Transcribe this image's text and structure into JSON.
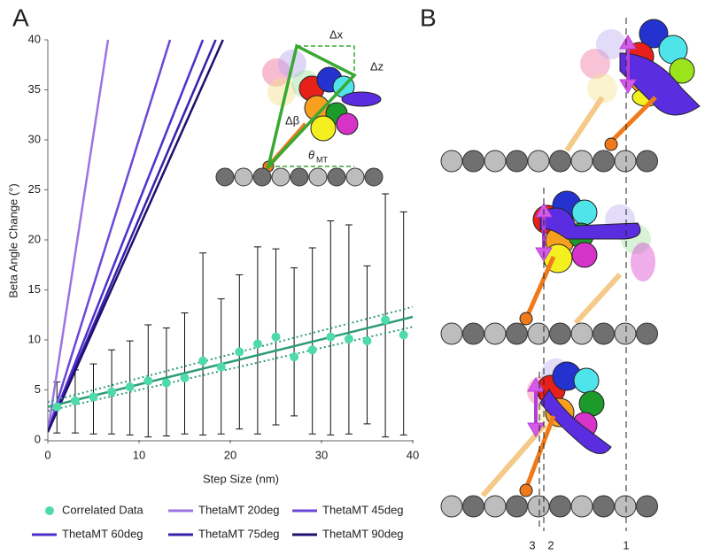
{
  "chart_data": {
    "type": "scatter",
    "panel_label": "A",
    "xlabel": "Step Size (nm)",
    "ylabel": "Beta Angle Change (°)",
    "xlim": [
      0,
      40
    ],
    "ylim": [
      0,
      40
    ],
    "xticks": [
      0,
      10,
      20,
      30,
      40
    ],
    "yticks": [
      0,
      5,
      10,
      15,
      20,
      25,
      30,
      35,
      40
    ],
    "series": [
      {
        "name": "Correlated Data",
        "color": "#4fdba8",
        "x": [
          1,
          3,
          5,
          7,
          9,
          11,
          13,
          15,
          17,
          19,
          21,
          23,
          25,
          27,
          29,
          31,
          33,
          35,
          37,
          39
        ],
        "values": [
          3.3,
          3.9,
          4.3,
          4.8,
          5.3,
          5.9,
          5.7,
          6.2,
          7.9,
          7.3,
          8.8,
          9.6,
          10.3,
          8.3,
          9.0,
          10.3,
          10.1,
          9.9,
          12.0,
          10.5
        ],
        "lower": [
          0.7,
          0.7,
          0.6,
          0.6,
          0.5,
          0.3,
          0.4,
          0.6,
          0.5,
          0.6,
          1.1,
          0.6,
          1.5,
          2.4,
          0.6,
          0.5,
          0.6,
          1.6,
          0.3,
          0.5
        ],
        "upper": [
          5.8,
          7.0,
          7.6,
          9.0,
          9.9,
          11.5,
          11.2,
          12.7,
          18.7,
          14.1,
          16.5,
          19.3,
          19.1,
          17.2,
          19.2,
          21.9,
          21.5,
          17.4,
          24.6,
          22.8
        ]
      },
      {
        "name": "ThetaMT 20deg",
        "color": "#9c74e2",
        "x": [
          0,
          6.6
        ],
        "values": [
          0.8,
          40
        ]
      },
      {
        "name": "ThetaMT 45deg",
        "color": "#6b48d8",
        "x": [
          0,
          13.4
        ],
        "values": [
          0.8,
          40
        ]
      },
      {
        "name": "ThetaMT 60deg",
        "color": "#4f30cc",
        "x": [
          0,
          17.0
        ],
        "values": [
          0.8,
          40
        ]
      },
      {
        "name": "ThetaMT 75deg",
        "color": "#3a1faa",
        "x": [
          0,
          18.4
        ],
        "values": [
          0.8,
          40
        ]
      },
      {
        "name": "ThetaMT 90deg",
        "color": "#1f0f6e",
        "x": [
          0,
          19.2
        ],
        "values": [
          0.8,
          40
        ]
      }
    ],
    "trend_line": {
      "color": "#2e9c78",
      "x": [
        0,
        40
      ],
      "values": [
        3.3,
        12.3
      ]
    },
    "confidence_bounds": [
      {
        "x": [
          0,
          40
        ],
        "values": [
          3.8,
          13.3
        ]
      },
      {
        "x": [
          0,
          40
        ],
        "values": [
          2.9,
          11.3
        ]
      }
    ],
    "annotations": {
      "dx": "Δx",
      "dz": "Δz",
      "dbeta": "Δβ",
      "theta": "θ",
      "theta_sub": "MT"
    }
  },
  "panel_b": {
    "label": "B",
    "line_labels": [
      "3",
      "2",
      "1"
    ]
  }
}
